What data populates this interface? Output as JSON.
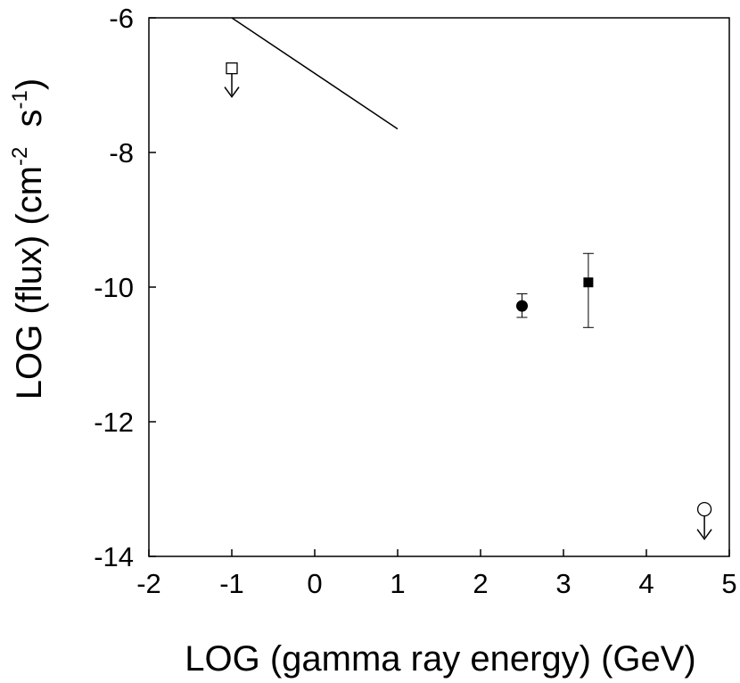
{
  "chart_data": {
    "type": "scatter",
    "title": "",
    "xlabel": "LOG (gamma ray energy) (GeV)",
    "ylabel": {
      "prefix": "LOG (flux) (cm",
      "exp1": "-2",
      "mid": "  s",
      "exp2": "-1",
      "suffix": ")"
    },
    "xlim": [
      -2,
      5
    ],
    "ylim": [
      -14,
      -6
    ],
    "x_ticks": [
      -2,
      -1,
      0,
      1,
      2,
      3,
      4,
      5
    ],
    "x_tick_labels": [
      "-2",
      "-1",
      "0",
      "1",
      "2",
      "3",
      "4",
      "5"
    ],
    "y_ticks": [
      -14,
      -12,
      -10,
      -8,
      -6
    ],
    "y_tick_labels": [
      "-14",
      "-12",
      "-10",
      "-8",
      "-6"
    ],
    "grid": false,
    "series": [
      {
        "name": "spectrum-line",
        "kind": "line",
        "points": [
          [
            -1,
            -6
          ],
          [
            1,
            -7.65
          ]
        ]
      },
      {
        "name": "open-square-upper-limit",
        "kind": "upper_limit",
        "marker": "open-square",
        "points": [
          [
            -1,
            -6.75
          ]
        ]
      },
      {
        "name": "filled-circle",
        "kind": "errorbar",
        "marker": "filled-circle",
        "points": [
          [
            2.5,
            -10.28
          ]
        ],
        "y_err": [
          [
            -10.45,
            -10.1
          ]
        ]
      },
      {
        "name": "filled-square",
        "kind": "errorbar",
        "marker": "filled-square",
        "points": [
          [
            3.3,
            -9.93
          ]
        ],
        "y_err": [
          [
            -10.6,
            -9.5
          ]
        ]
      },
      {
        "name": "open-circle-upper-limit",
        "kind": "upper_limit",
        "marker": "open-circle",
        "points": [
          [
            4.7,
            -13.3
          ]
        ]
      }
    ]
  }
}
